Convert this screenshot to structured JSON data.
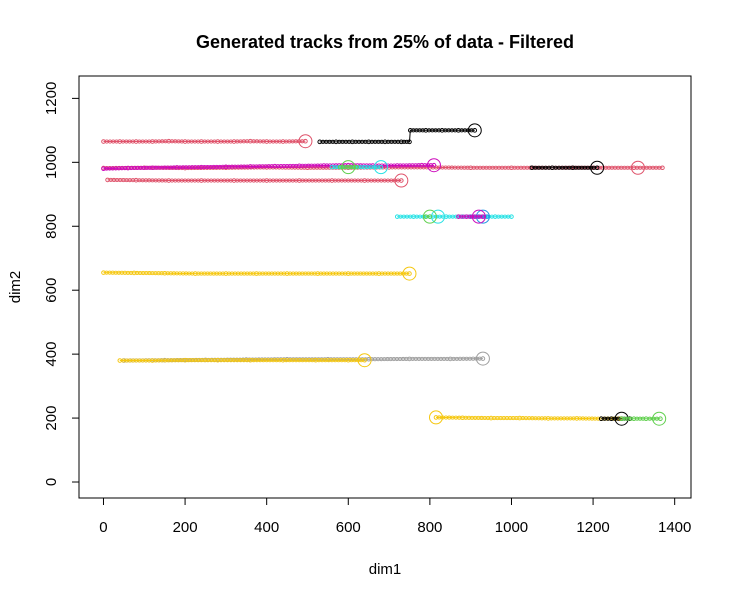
{
  "chart_data": {
    "type": "scatter",
    "title": "Generated tracks from 25% of data - Filtered",
    "xlabel": "dim1",
    "ylabel": "dim2",
    "xlim": [
      -60,
      1440
    ],
    "ylim": [
      -50,
      1270
    ],
    "xticks": [
      "0",
      "200",
      "400",
      "600",
      "800",
      "1000",
      "1200",
      "1400"
    ],
    "yticks": [
      "0",
      "200",
      "400",
      "600",
      "800",
      "1000",
      "1200"
    ],
    "grid": false,
    "legend": "none",
    "series": [
      {
        "color": "#DF536B",
        "x": [
          0,
          40,
          80,
          120,
          160,
          200,
          240,
          280,
          320,
          360,
          400,
          440,
          495
        ],
        "y": [
          1065,
          1065,
          1065,
          1065,
          1066,
          1065,
          1065,
          1065,
          1065,
          1066,
          1065,
          1065,
          1066
        ],
        "end": [
          495,
          1066
        ]
      },
      {
        "color": "#000000",
        "x": [
          530,
          570,
          610,
          650,
          690,
          730,
          750,
          752,
          790,
          830,
          870,
          910
        ],
        "y": [
          1064,
          1064,
          1064,
          1064,
          1064,
          1064,
          1064,
          1100,
          1100,
          1100,
          1100,
          1100
        ],
        "end": [
          910,
          1100
        ]
      },
      {
        "color": "#DF536B",
        "x": [
          0,
          100,
          200,
          300,
          400,
          500,
          600,
          700,
          800,
          900,
          1000,
          1100,
          1200,
          1300,
          1370
        ],
        "y": [
          982,
          983,
          982,
          983,
          984,
          983,
          983,
          984,
          984,
          983,
          983,
          983,
          983,
          983,
          983
        ],
        "end": [
          1310,
          983
        ]
      },
      {
        "color": "#CD0BBC",
        "x": [
          0,
          60,
          120,
          180,
          240,
          300,
          360,
          420,
          480,
          540,
          600,
          660,
          720,
          780,
          810
        ],
        "y": [
          980,
          982,
          983,
          984,
          985,
          986,
          987,
          988,
          989,
          990,
          991,
          990,
          990,
          991,
          991
        ],
        "end": [
          810,
          991
        ]
      },
      {
        "color": "#000000",
        "x": [
          1050,
          1100,
          1150,
          1210
        ],
        "y": [
          983,
          983,
          983,
          983
        ],
        "end": [
          1210,
          983
        ]
      },
      {
        "color": "#28E2E5",
        "x": [
          560,
          600,
          640,
          680
        ],
        "y": [
          985,
          985,
          985,
          985
        ],
        "end": [
          680,
          985
        ]
      },
      {
        "color": "#61D04F",
        "x": [
          580,
          600,
          620
        ],
        "y": [
          985,
          985,
          985
        ],
        "end": [
          600,
          985
        ]
      },
      {
        "color": "#DF536B",
        "x": [
          10,
          80,
          160,
          240,
          320,
          400,
          480,
          560,
          640,
          730
        ],
        "y": [
          945,
          944,
          943,
          943,
          943,
          943,
          943,
          943,
          943,
          943
        ],
        "end": [
          730,
          943
        ]
      },
      {
        "color": "#28E2E5",
        "x": [
          720,
          760,
          800,
          840,
          880,
          920,
          960,
          1000
        ],
        "y": [
          830,
          830,
          830,
          830,
          830,
          830,
          830,
          830
        ],
        "end": [
          820,
          830
        ]
      },
      {
        "color": "#61D04F",
        "x": [
          790,
          800
        ],
        "y": [
          830,
          830
        ],
        "end": [
          800,
          830
        ]
      },
      {
        "color": "#2297E6",
        "x": [
          900,
          920,
          940
        ],
        "y": [
          830,
          830,
          830
        ],
        "end": [
          930,
          830
        ]
      },
      {
        "color": "#CD0BBC",
        "x": [
          870,
          890,
          910,
          930
        ],
        "y": [
          830,
          830,
          830,
          830
        ],
        "end": [
          920,
          830
        ]
      },
      {
        "color": "#F5C710",
        "x": [
          0,
          75,
          150,
          225,
          300,
          375,
          450,
          525,
          600,
          675,
          750
        ],
        "y": [
          655,
          654,
          653,
          652,
          652,
          652,
          652,
          652,
          652,
          652,
          652
        ],
        "end": [
          750,
          652
        ]
      },
      {
        "color": "#9E9E9E",
        "x": [
          50,
          150,
          250,
          350,
          450,
          550,
          650,
          750,
          850,
          930
        ],
        "y": [
          380,
          381,
          382,
          383,
          384,
          384,
          384,
          385,
          385,
          386
        ],
        "end": [
          930,
          386
        ]
      },
      {
        "color": "#F5C710",
        "x": [
          40,
          120,
          200,
          280,
          360,
          440,
          520,
          600,
          640
        ],
        "y": [
          380,
          380,
          381,
          381,
          381,
          381,
          381,
          381,
          381
        ],
        "end": [
          640,
          381
        ]
      },
      {
        "color": "#F5C710",
        "x": [
          815,
          880,
          950,
          1020,
          1090,
          1160,
          1220,
          1265
        ],
        "y": [
          202,
          201,
          200,
          200,
          199,
          199,
          198,
          198
        ],
        "end": [
          815,
          202
        ]
      },
      {
        "color": "#000000",
        "x": [
          1220,
          1245,
          1270,
          1290
        ],
        "y": [
          198,
          198,
          198,
          198
        ],
        "end": [
          1270,
          198
        ]
      },
      {
        "color": "#61D04F",
        "x": [
          1270,
          1300,
          1330,
          1365
        ],
        "y": [
          198,
          198,
          198,
          198
        ],
        "end": [
          1362,
          198
        ]
      }
    ]
  }
}
